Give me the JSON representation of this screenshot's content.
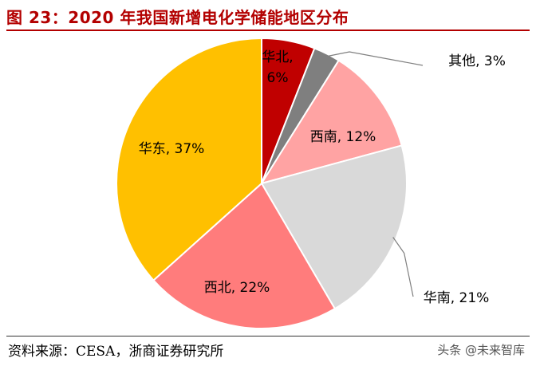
{
  "title": "图 23：2020 年我国新增电化学储能地区分布",
  "source": "资料来源：CESA，浙商证券研究所",
  "watermark": "头条 @未来智库",
  "chart_data": {
    "type": "pie",
    "title": "图 23：2020 年我国新增电化学储能地区分布",
    "slices": [
      {
        "label": "华北",
        "value": 6,
        "text": "华北,",
        "text2": "6%",
        "color": "#c00000"
      },
      {
        "label": "其他",
        "value": 3,
        "text": "其他, 3%",
        "color": "#7f7f7f"
      },
      {
        "label": "西南",
        "value": 12,
        "text": "西南, 12%",
        "color": "#ffa3a3"
      },
      {
        "label": "华南",
        "value": 21,
        "text": "华南, 21%",
        "color": "#d9d9d9"
      },
      {
        "label": "西北",
        "value": 22,
        "text": "西北, 22%",
        "color": "#ff7c7c"
      },
      {
        "label": "华东",
        "value": 37,
        "text": "华东, 37%",
        "color": "#ffc000"
      }
    ]
  }
}
